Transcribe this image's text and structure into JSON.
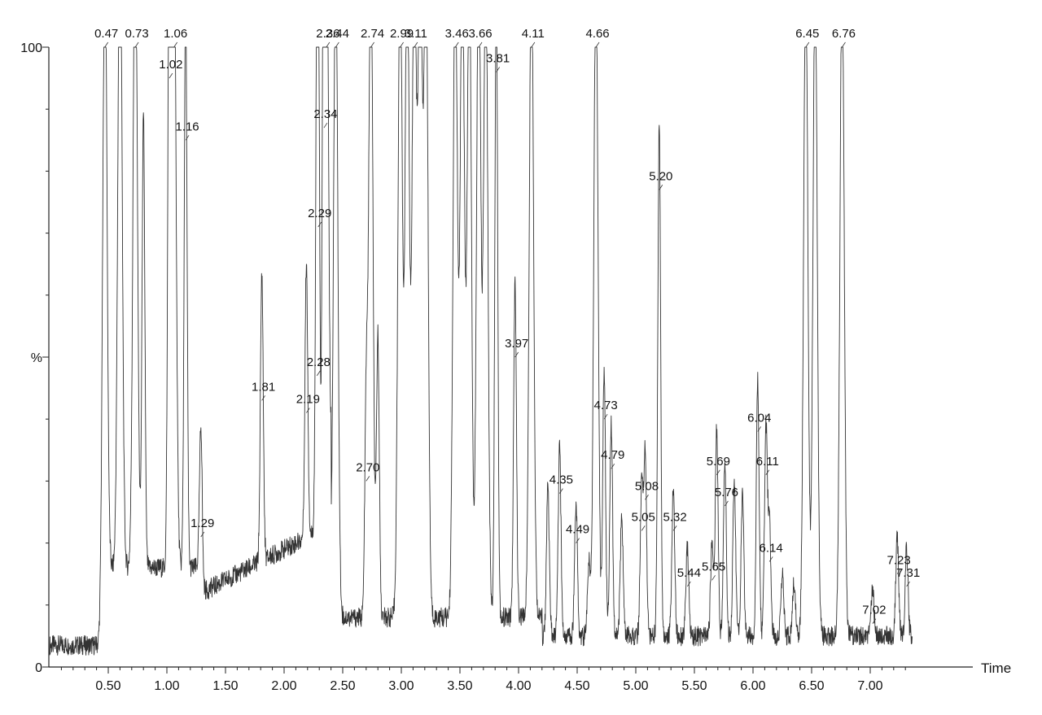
{
  "chart_data": {
    "type": "line",
    "title": "",
    "xlabel": "Time",
    "ylabel": "%",
    "xlim": [
      0.0,
      7.4
    ],
    "ylim": [
      0,
      100
    ],
    "y_ticks": [
      {
        "value": 0,
        "label": "0"
      },
      {
        "value": 50,
        "label": "%"
      },
      {
        "value": 100,
        "label": "100"
      }
    ],
    "x_ticks": [
      "0.50",
      "1.00",
      "1.50",
      "2.00",
      "2.50",
      "3.00",
      "3.50",
      "4.00",
      "4.50",
      "5.00",
      "5.50",
      "6.00",
      "6.50",
      "7.00"
    ],
    "grid": false,
    "line_color": "#333333",
    "peaks": [
      {
        "t": 0.47,
        "h": 100,
        "label": "0.47"
      },
      {
        "t": 0.6,
        "h": 100,
        "label": ""
      },
      {
        "t": 0.73,
        "h": 100,
        "label": "0.73"
      },
      {
        "t": 0.8,
        "h": 67,
        "label": ""
      },
      {
        "t": 1.02,
        "h": 95,
        "label": "1.02"
      },
      {
        "t": 1.06,
        "h": 100,
        "label": "1.06"
      },
      {
        "t": 1.16,
        "h": 85,
        "label": "1.16"
      },
      {
        "t": 1.29,
        "h": 21,
        "label": "1.29"
      },
      {
        "t": 1.81,
        "h": 43,
        "label": "1.81"
      },
      {
        "t": 2.19,
        "h": 41,
        "label": "2.19"
      },
      {
        "t": 2.28,
        "h": 47,
        "label": "2.28"
      },
      {
        "t": 2.29,
        "h": 71,
        "label": "2.29"
      },
      {
        "t": 2.34,
        "h": 87,
        "label": "2.34"
      },
      {
        "t": 2.36,
        "h": 100,
        "label": "2.36"
      },
      {
        "t": 2.44,
        "h": 100,
        "label": "2.44"
      },
      {
        "t": 2.7,
        "h": 30,
        "label": "2.70"
      },
      {
        "t": 2.74,
        "h": 100,
        "label": "2.74"
      },
      {
        "t": 2.8,
        "h": 42,
        "label": ""
      },
      {
        "t": 2.99,
        "h": 100,
        "label": "2.99"
      },
      {
        "t": 3.05,
        "h": 100,
        "label": ""
      },
      {
        "t": 3.11,
        "h": 100,
        "label": "3.11"
      },
      {
        "t": 3.16,
        "h": 100,
        "label": ""
      },
      {
        "t": 3.21,
        "h": 100,
        "label": ""
      },
      {
        "t": 3.46,
        "h": 100,
        "label": "3.46"
      },
      {
        "t": 3.52,
        "h": 100,
        "label": ""
      },
      {
        "t": 3.58,
        "h": 100,
        "label": ""
      },
      {
        "t": 3.66,
        "h": 100,
        "label": "3.66"
      },
      {
        "t": 3.72,
        "h": 100,
        "label": ""
      },
      {
        "t": 3.81,
        "h": 96,
        "label": "3.81"
      },
      {
        "t": 3.97,
        "h": 50,
        "label": "3.97"
      },
      {
        "t": 4.11,
        "h": 100,
        "label": "4.11"
      },
      {
        "t": 4.25,
        "h": 22,
        "label": ""
      },
      {
        "t": 4.35,
        "h": 28,
        "label": "4.35"
      },
      {
        "t": 4.49,
        "h": 20,
        "label": "4.49"
      },
      {
        "t": 4.6,
        "h": 11,
        "label": ""
      },
      {
        "t": 4.66,
        "h": 100,
        "label": "4.66"
      },
      {
        "t": 4.73,
        "h": 40,
        "label": "4.73"
      },
      {
        "t": 4.79,
        "h": 32,
        "label": "4.79"
      },
      {
        "t": 4.88,
        "h": 18,
        "label": ""
      },
      {
        "t": 5.05,
        "h": 22,
        "label": "5.05"
      },
      {
        "t": 5.08,
        "h": 27,
        "label": "5.08"
      },
      {
        "t": 5.2,
        "h": 77,
        "label": "5.20"
      },
      {
        "t": 5.32,
        "h": 22,
        "label": "5.32"
      },
      {
        "t": 5.44,
        "h": 13,
        "label": "5.44"
      },
      {
        "t": 5.65,
        "h": 14,
        "label": "5.65"
      },
      {
        "t": 5.69,
        "h": 31,
        "label": "5.69"
      },
      {
        "t": 5.76,
        "h": 26,
        "label": "5.76"
      },
      {
        "t": 5.84,
        "h": 23,
        "label": ""
      },
      {
        "t": 5.91,
        "h": 21,
        "label": ""
      },
      {
        "t": 6.04,
        "h": 38,
        "label": "6.04"
      },
      {
        "t": 6.11,
        "h": 31,
        "label": "6.11"
      },
      {
        "t": 6.14,
        "h": 17,
        "label": "6.14"
      },
      {
        "t": 6.25,
        "h": 9,
        "label": ""
      },
      {
        "t": 6.35,
        "h": 8,
        "label": ""
      },
      {
        "t": 6.45,
        "h": 100,
        "label": "6.45"
      },
      {
        "t": 6.53,
        "h": 100,
        "label": ""
      },
      {
        "t": 6.76,
        "h": 100,
        "label": "6.76"
      },
      {
        "t": 7.02,
        "h": 7,
        "label": "7.02"
      },
      {
        "t": 7.23,
        "h": 15,
        "label": "7.23"
      },
      {
        "t": 7.31,
        "h": 13,
        "label": "7.31"
      }
    ]
  }
}
